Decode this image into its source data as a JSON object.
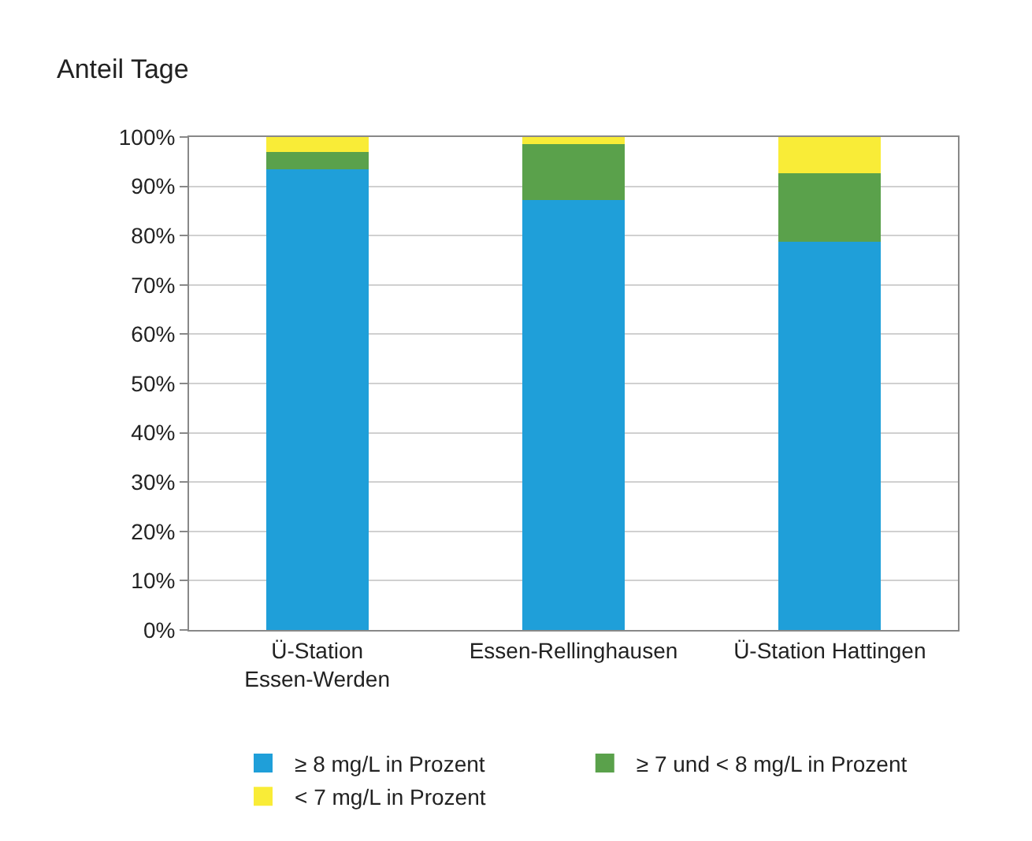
{
  "chart_data": {
    "type": "bar",
    "stacked": true,
    "title": "Anteil Tage",
    "categories": [
      "Ü-Station\nEssen-Werden",
      "Essen-Rellinghausen",
      "Ü-Station Hattingen"
    ],
    "series": [
      {
        "name": "≥ 8 mg/L in Prozent",
        "color": "#1f9fd9",
        "values": [
          93.4,
          87.3,
          78.8
        ]
      },
      {
        "name": "≥ 7 und < 8 mg/L in Prozent",
        "color": "#5aa14b",
        "values": [
          3.6,
          11.2,
          13.8
        ]
      },
      {
        "name": "< 7 mg/L in Prozent",
        "color": "#f9ec37",
        "values": [
          3.0,
          1.5,
          7.4
        ]
      }
    ],
    "ylim": [
      0,
      100
    ],
    "yticks": [
      {
        "value": 0,
        "label": "0%"
      },
      {
        "value": 10,
        "label": "10%"
      },
      {
        "value": 20,
        "label": "20%"
      },
      {
        "value": 30,
        "label": "30%"
      },
      {
        "value": 40,
        "label": "40%"
      },
      {
        "value": 50,
        "label": "50%"
      },
      {
        "value": 60,
        "label": "60%"
      },
      {
        "value": 70,
        "label": "70%"
      },
      {
        "value": 80,
        "label": "80%"
      },
      {
        "value": 90,
        "label": "90%"
      },
      {
        "value": 100,
        "label": "100%"
      }
    ],
    "grid": "y",
    "legend": "bottom"
  }
}
